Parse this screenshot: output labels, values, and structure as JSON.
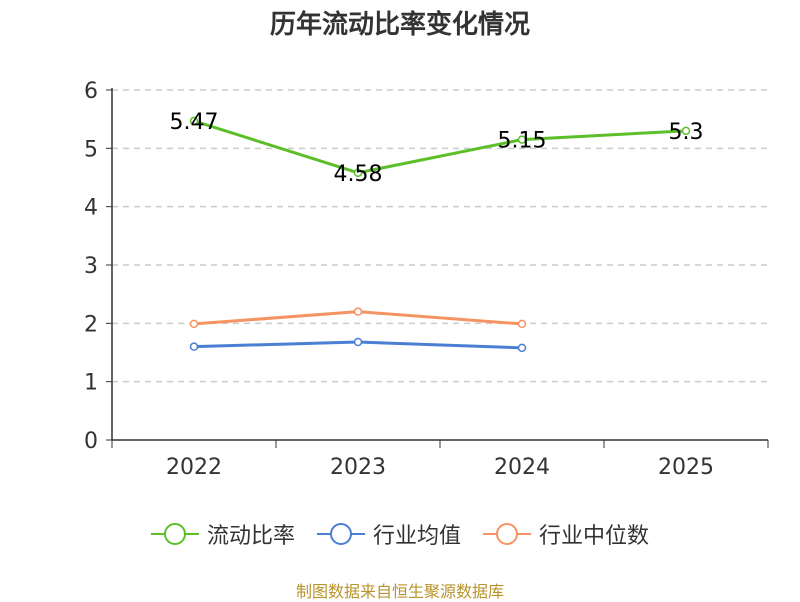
{
  "chart_data": {
    "type": "line",
    "title": "历年流动比率变化情况",
    "categories": [
      "2022",
      "2023",
      "2024",
      "2025"
    ],
    "ylim": [
      0,
      6
    ],
    "yticks": [
      0,
      1,
      2,
      3,
      4,
      5,
      6
    ],
    "grid": true,
    "legend_position": "bottom",
    "series": [
      {
        "name": "流动比率",
        "color": "#5cbf2a",
        "values": [
          5.47,
          4.58,
          5.15,
          5.3
        ],
        "show_labels": true
      },
      {
        "name": "行业均值",
        "color": "#4a7fd4",
        "values": [
          1.6,
          1.68,
          1.58,
          null
        ],
        "show_labels": false
      },
      {
        "name": "行业中位数",
        "color": "#f59462",
        "values": [
          1.99,
          2.2,
          1.99,
          null
        ],
        "show_labels": false
      }
    ],
    "data_labels": [
      "5.47",
      "4.58",
      "5.15",
      "5.3"
    ]
  },
  "source": "制图数据来自恒生聚源数据库"
}
